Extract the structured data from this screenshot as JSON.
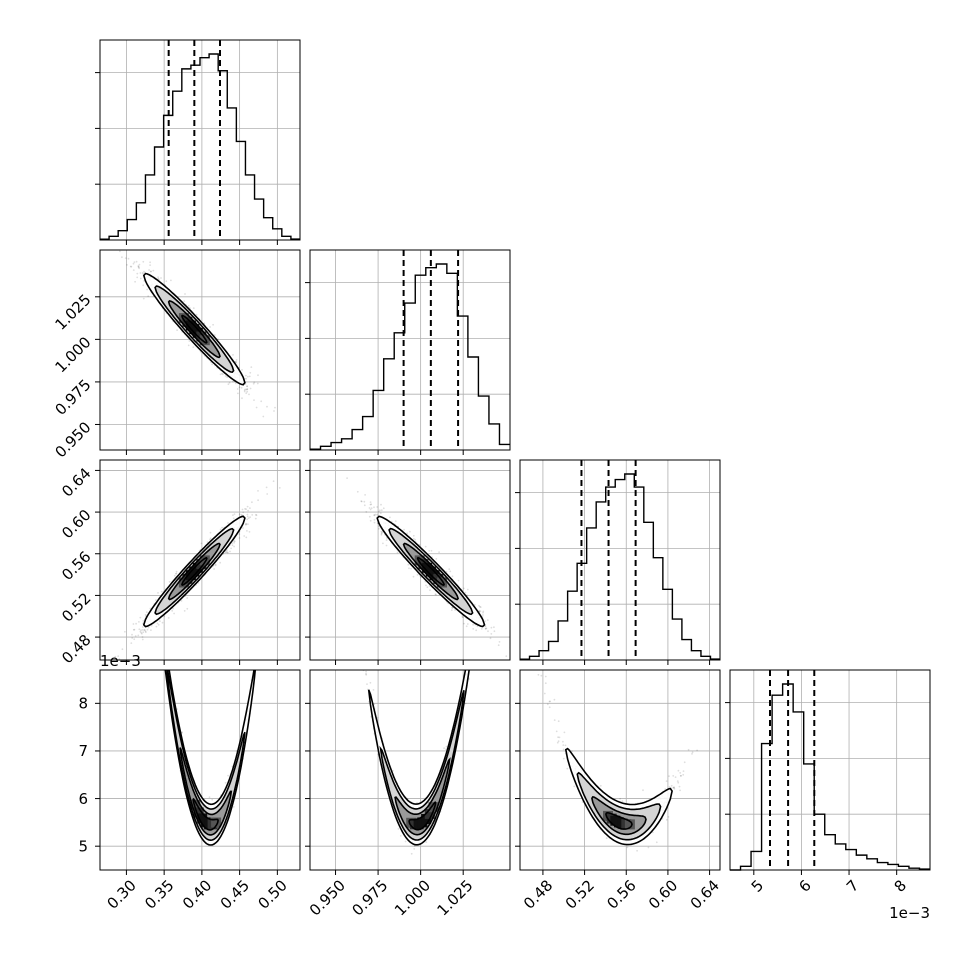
{
  "chart_data": {
    "type": "corner",
    "grid": true,
    "colors": {
      "line": "#000000",
      "grid": "#b0b0b0",
      "density": "#000000"
    },
    "parameters": [
      {
        "range": [
          0.265,
          0.53
        ],
        "ticks": [
          0.3,
          0.35,
          0.4,
          0.45,
          0.5
        ],
        "tick_labels": [
          "0.30",
          "0.35",
          "0.40",
          "0.45",
          "0.50"
        ],
        "quantiles": [
          0.356,
          0.39,
          0.424
        ],
        "hist": [
          0.004,
          0.02,
          0.05,
          0.11,
          0.2,
          0.35,
          0.5,
          0.67,
          0.8,
          0.92,
          0.94,
          0.98,
          1.0,
          0.91,
          0.71,
          0.53,
          0.35,
          0.22,
          0.12,
          0.06,
          0.02,
          0.005
        ]
      },
      {
        "range": [
          0.935,
          1.0525
        ],
        "ticks": [
          0.95,
          0.975,
          1.0,
          1.025
        ],
        "tick_labels": [
          "0.950",
          "0.975",
          "1.000",
          "1.025"
        ],
        "quantiles": [
          0.99,
          1.006,
          1.022
        ],
        "hist": [
          0.004,
          0.02,
          0.04,
          0.06,
          0.11,
          0.18,
          0.32,
          0.49,
          0.63,
          0.79,
          0.94,
          0.98,
          1.0,
          0.95,
          0.72,
          0.5,
          0.29,
          0.14,
          0.03
        ]
      },
      {
        "range": [
          0.458,
          0.65
        ],
        "ticks": [
          0.48,
          0.52,
          0.56,
          0.6,
          0.64
        ],
        "tick_labels": [
          "0.48",
          "0.52",
          "0.56",
          "0.60",
          "0.64"
        ],
        "quantiles": [
          0.517,
          0.543,
          0.569
        ],
        "hist": [
          0.004,
          0.02,
          0.05,
          0.1,
          0.21,
          0.37,
          0.52,
          0.71,
          0.85,
          0.93,
          0.97,
          1.0,
          0.93,
          0.74,
          0.55,
          0.38,
          0.22,
          0.11,
          0.05,
          0.02,
          0.005
        ]
      },
      {
        "range": [
          0.0045,
          0.0087
        ],
        "ticks": [
          0.005,
          0.006,
          0.007,
          0.008
        ],
        "tick_labels": [
          "5",
          "6",
          "7",
          "8"
        ],
        "multiplier_label": "1e−3",
        "quantiles": [
          0.00534,
          0.00572,
          0.00627
        ],
        "hist": [
          0.0,
          0.02,
          0.1,
          0.68,
          0.94,
          1.0,
          0.85,
          0.57,
          0.3,
          0.19,
          0.14,
          0.11,
          0.08,
          0.06,
          0.04,
          0.03,
          0.02,
          0.01,
          0.005
        ]
      }
    ],
    "pairs": [
      {
        "row": 1,
        "col": 0,
        "curve": {
          "type": "linear",
          "x0": 0.39,
          "y0": 1.006,
          "slope": -0.47
        },
        "x_spread": 0.034,
        "y_noise": 0.0045,
        "contours": [
          {
            "hw": 0.0165,
            "hh": 0.0021,
            "shade": "#555555"
          },
          {
            "hw": 0.034,
            "hh": 0.0044,
            "shade": "#9a9a9a"
          },
          {
            "hw": 0.052,
            "hh": 0.0066,
            "shade": "#d4d4d4"
          },
          {
            "hw": 0.067,
            "hh": 0.0085,
            "shade": null
          }
        ]
      },
      {
        "row": 2,
        "col": 0,
        "curve": {
          "type": "linear",
          "x0": 0.39,
          "y0": 0.543,
          "slope": 0.765
        },
        "x_spread": 0.034,
        "y_noise": 0.007,
        "contours": [
          {
            "hw": 0.0165,
            "hh": 0.0034,
            "shade": "#555555"
          },
          {
            "hw": 0.034,
            "hh": 0.0068,
            "shade": "#9a9a9a"
          },
          {
            "hw": 0.052,
            "hh": 0.0102,
            "shade": "#d4d4d4"
          },
          {
            "hw": 0.067,
            "hh": 0.0132,
            "shade": null
          }
        ]
      },
      {
        "row": 2,
        "col": 1,
        "curve": {
          "type": "linear",
          "x0": 1.006,
          "y0": 0.543,
          "slope": -1.625
        },
        "x_spread": 0.016,
        "y_noise": 0.007,
        "contours": [
          {
            "hw": 0.0078,
            "hh": 0.0034,
            "shade": "#555555"
          },
          {
            "hw": 0.016,
            "hh": 0.0068,
            "shade": "#9a9a9a"
          },
          {
            "hw": 0.0245,
            "hh": 0.0102,
            "shade": "#d4d4d4"
          },
          {
            "hw": 0.0315,
            "hh": 0.0132,
            "shade": null
          }
        ]
      },
      {
        "row": 3,
        "col": 0,
        "curve": {
          "type": "quadratic",
          "x0": 0.405,
          "y0": 0.0055,
          "a": 0.96,
          "b": -0.0135
        },
        "x_spread": 0.034,
        "y_noise": 0.00018,
        "contours": [
          {
            "hw": 0.0165,
            "hh": 0.00012,
            "shade": "#555555"
          },
          {
            "hw": 0.034,
            "hh": 0.00022,
            "shade": "#9a9a9a"
          },
          {
            "hw": 0.052,
            "hh": 0.00033,
            "shade": "#d4d4d4"
          },
          {
            "hw": 0.067,
            "hh": 0.00043,
            "shade": null
          }
        ]
      },
      {
        "row": 3,
        "col": 1,
        "curve": {
          "type": "quadratic",
          "x0": 1.001,
          "y0": 0.0055,
          "a": 3.6,
          "b": 0.025
        },
        "x_spread": 0.016,
        "y_noise": 0.00018,
        "contours": [
          {
            "hw": 0.0078,
            "hh": 0.00012,
            "shade": "#555555"
          },
          {
            "hw": 0.016,
            "hh": 0.00022,
            "shade": "#9a9a9a"
          },
          {
            "hw": 0.0245,
            "hh": 0.00033,
            "shade": "#d4d4d4"
          },
          {
            "hw": 0.0315,
            "hh": 0.00043,
            "shade": null
          }
        ]
      },
      {
        "row": 3,
        "col": 2,
        "curve": {
          "type": "quadratic",
          "x0": 0.553,
          "y0": 0.0055,
          "a": 0.42,
          "b": -0.0085
        },
        "x_spread": 0.026,
        "y_noise": 0.00018,
        "contours": [
          {
            "hw": 0.0125,
            "hh": 0.00012,
            "shade": "#555555"
          },
          {
            "hw": 0.026,
            "hh": 0.00022,
            "shade": "#9a9a9a"
          },
          {
            "hw": 0.04,
            "hh": 0.00033,
            "shade": "#d4d4d4"
          },
          {
            "hw": 0.051,
            "hh": 0.00043,
            "shade": null
          }
        ]
      }
    ]
  }
}
